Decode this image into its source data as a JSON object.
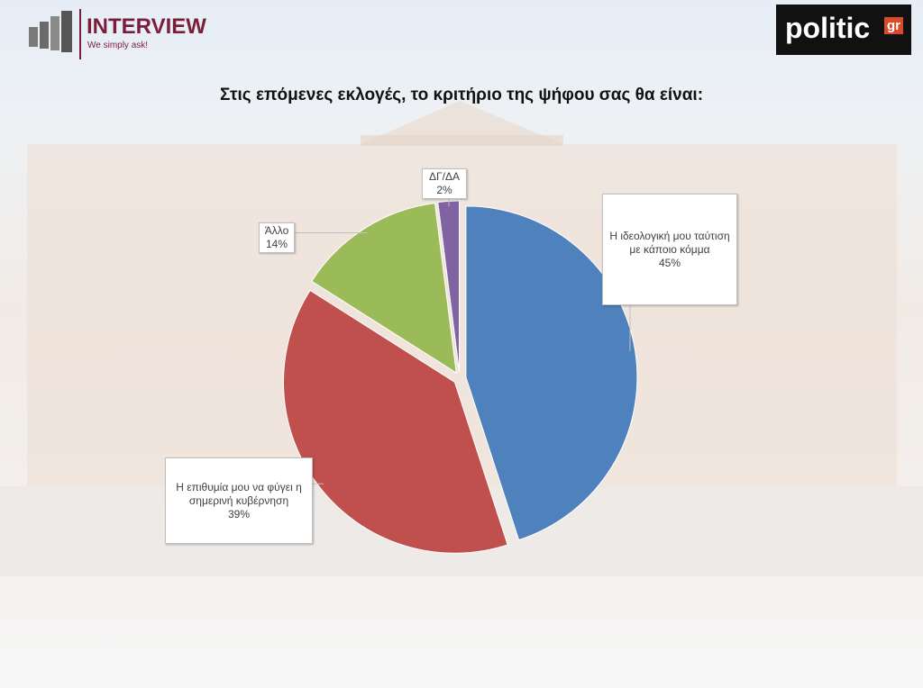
{
  "header": {
    "brand": "INTERVIEW",
    "tagline": "We simply ask!",
    "publisher": "politic",
    "publisher_suffix": "gr"
  },
  "chart_data": {
    "type": "pie",
    "title": "Στις επόμενες εκλογές, το κριτήριο της ψήφου σας θα είναι:",
    "categories": [
      "Η ιδεολογική μου ταύτιση με κάποιο κόμμα",
      "Η επιθυμία μου να φύγει η σημερινή κυβέρνηση",
      "Άλλο",
      "ΔΓ/ΔΑ"
    ],
    "values": [
      45,
      39,
      14,
      2
    ],
    "value_labels": [
      "45%",
      "39%",
      "14%",
      "2%"
    ],
    "colors": [
      "#4f81bd",
      "#c0504d",
      "#9bbb59",
      "#8064a2"
    ]
  }
}
